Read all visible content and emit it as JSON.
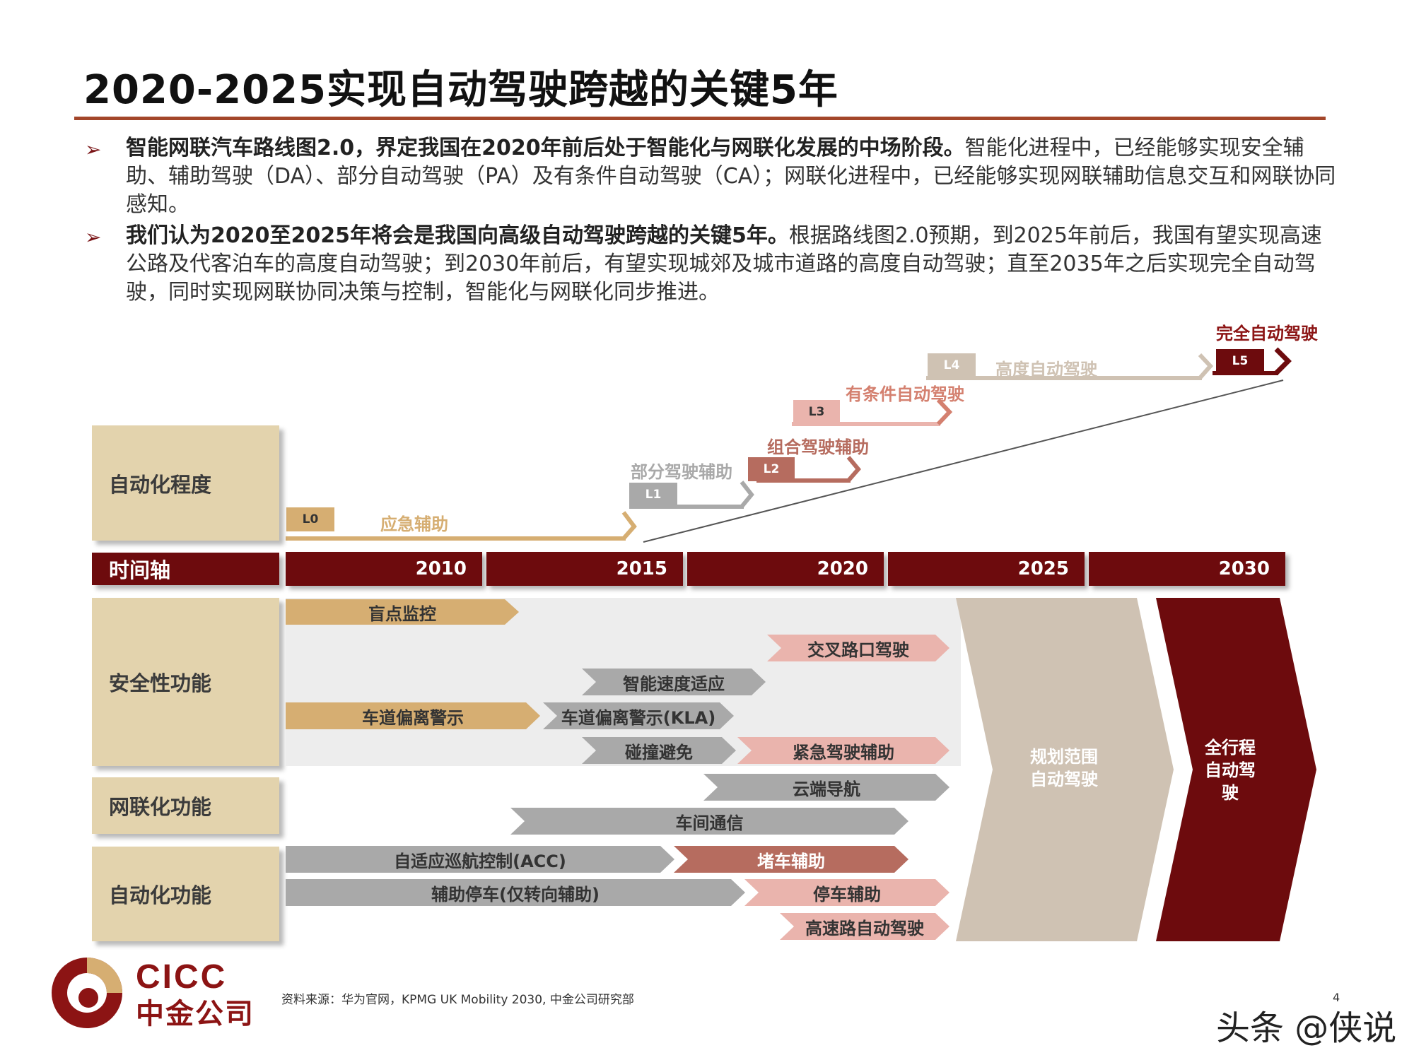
{
  "title": "2020-2025实现自动驾驶跨越的关键5年",
  "bullets": [
    {
      "bold": "智能网联汽车路线图2.0，界定我国在2020年前后处于智能化与网联化发展的中场阶段。",
      "text": "智能化进程中，已经能够实现安全辅助、辅助驾驶（DA）、部分自动驾驶（PA）及有条件自动驾驶（CA）；网联化进程中，已经能够实现网联辅助信息交互和网联协同感知。"
    },
    {
      "bold": "我们认为2020至2025年将会是我国向高级自动驾驶跨越的关键5年。",
      "text": "根据路线图2.0预期，到2025年前后，我国有望实现高速公路及代客泊车的高度自动驾驶；到2030年前后，有望实现城郊及城市道路的高度自动驾驶；直至2035年之后实现完全自动驾驶，同时实现网联协同决策与控制，智能化与网联化同步推进。"
    }
  ],
  "categories": {
    "automation_level": "自动化程度",
    "timeline": "时间轴",
    "safety": "安全性功能",
    "connectivity": "网联化功能",
    "automation_func": "自动化功能"
  },
  "years": [
    "2010",
    "2015",
    "2020",
    "2025",
    "2030"
  ],
  "levels": [
    {
      "code": "L0",
      "name": "应急辅助"
    },
    {
      "code": "L1",
      "name": "部分驾驶辅助"
    },
    {
      "code": "L2",
      "name": "组合驾驶辅助"
    },
    {
      "code": "L3",
      "name": "有条件自动驾驶"
    },
    {
      "code": "L4",
      "name": "高度自动驾驶"
    },
    {
      "code": "L5",
      "name": "完全自动驾驶"
    }
  ],
  "features": {
    "blind_spot": "盲点监控",
    "intersection": "交叉路口驾驶",
    "speed_adapt": "智能速度适应",
    "lane_warn": "车道偏离警示",
    "lane_warn_kla": "车道偏离警示(KLA)",
    "collision": "碰撞避免",
    "emergency": "紧急驾驶辅助",
    "cloud_nav": "云端导航",
    "v2v": "车间通信",
    "acc": "自适应巡航控制(ACC)",
    "traffic_jam": "堵车辅助",
    "park_steer": "辅助停车(仅转向辅助)",
    "park_assist": "停车辅助",
    "highway": "高速路自动驾驶"
  },
  "big_arrows": {
    "planned": [
      "规划范围",
      "自动驾驶"
    ],
    "full": [
      "全行程",
      "自动驾",
      "驶"
    ]
  },
  "footer": {
    "source": "资料来源：华为官网，KPMG UK Mobility 2030, 中金公司研究部",
    "logo_en": "CICC",
    "logo_cn": "中金公司",
    "page": "4",
    "watermark": "头条 @侠说"
  },
  "colors": {
    "dark_red": "#6d0b0d",
    "tan": "#e3d3ad",
    "gold": "#d6ae72",
    "gray": "#a9a9a9",
    "pink": "#eab4ad",
    "rose": "#b66c5f",
    "light_stone": "#cfc2b3"
  }
}
